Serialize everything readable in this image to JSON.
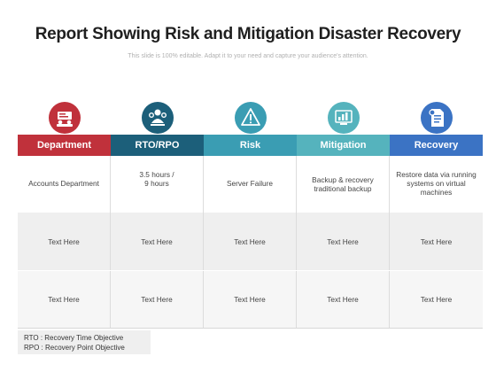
{
  "title": "Report Showing Risk and Mitigation Disaster Recovery",
  "subtitle": "This slide is 100% editable. Adapt it to your need and capture your audience's attention.",
  "colors": {
    "department": "#c0313b",
    "rto_rpo": "#1c5f7a",
    "risk": "#3a9db3",
    "mitigation": "#55b3bd",
    "recovery": "#3b73c4"
  },
  "icons": [
    "meeting-icon",
    "team-gear-icon",
    "warning-icon",
    "analytics-icon",
    "document-icon"
  ],
  "headers": [
    "Department",
    "RTO/RPO",
    "Risk",
    "Mitigation",
    "Recovery"
  ],
  "rows": [
    [
      "Accounts Department",
      "3.5 hours /\n9 hours",
      "Server Failure",
      "Backup & recovery traditional backup",
      "Restore data via running systems on virtual machines"
    ],
    [
      "Text Here",
      "Text Here",
      "Text Here",
      "Text Here",
      "Text Here"
    ],
    [
      "Text Here",
      "Text Here",
      "Text Here",
      "Text Here",
      "Text Here"
    ]
  ],
  "legend": {
    "line1": "RTO : Recovery Time Objective",
    "line2": "RPO : Recovery Point Objective"
  }
}
